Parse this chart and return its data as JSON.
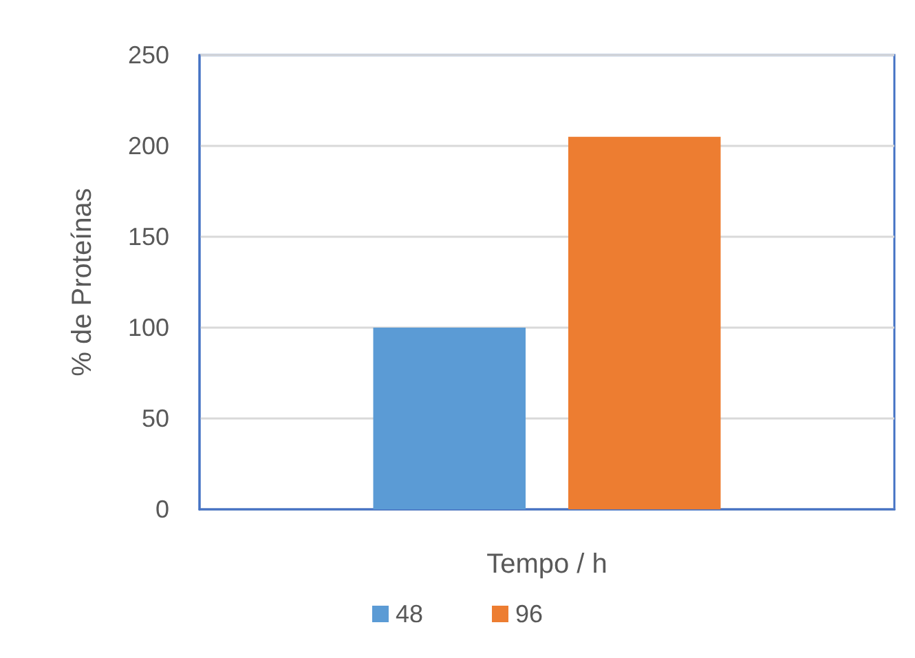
{
  "chart_data": {
    "type": "bar",
    "xlabel": "Tempo / h",
    "ylabel": "% de Proteínas",
    "categories": [
      null
    ],
    "series": [
      {
        "name": "48",
        "color": "#5b9bd5",
        "values": [
          100
        ]
      },
      {
        "name": "96",
        "color": "#ed7d31",
        "values": [
          205
        ]
      }
    ],
    "ylim": [
      0,
      250
    ],
    "yticks": [
      0,
      50,
      100,
      150,
      200,
      250
    ],
    "grid": "y",
    "legend": "bottom"
  }
}
